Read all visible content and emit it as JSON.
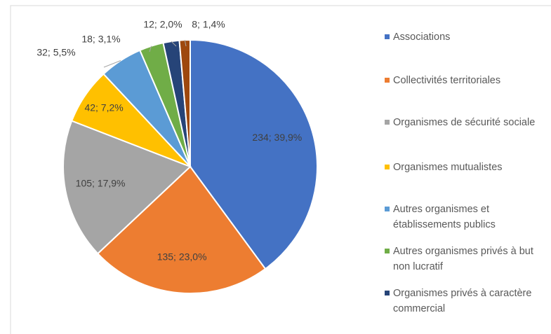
{
  "chart_data": {
    "type": "pie",
    "categories": [
      "Associations",
      "Collectivités territoriales",
      "Organismes de sécurité sociale",
      "Organismes mutualistes",
      "Autres organismes et établissements publics",
      "Autres organismes privés à but non lucratif",
      "Organismes privés à caractère commercial",
      null
    ],
    "values": [
      234,
      135,
      105,
      42,
      32,
      18,
      12,
      8
    ],
    "value_labels": [
      "234; 39,9%",
      "135; 23,0%",
      "105; 17,9%",
      "42; 7,2%",
      "32; 5,5%",
      "18; 3,1%",
      "12; 2,0%",
      "8; 1,4%"
    ],
    "colors": [
      "#4472c4",
      "#ed7d31",
      "#a5a5a5",
      "#ffc000",
      "#5b9bd5",
      "#70ad47",
      "#264478",
      "#9e480e"
    ],
    "legend": "right"
  }
}
